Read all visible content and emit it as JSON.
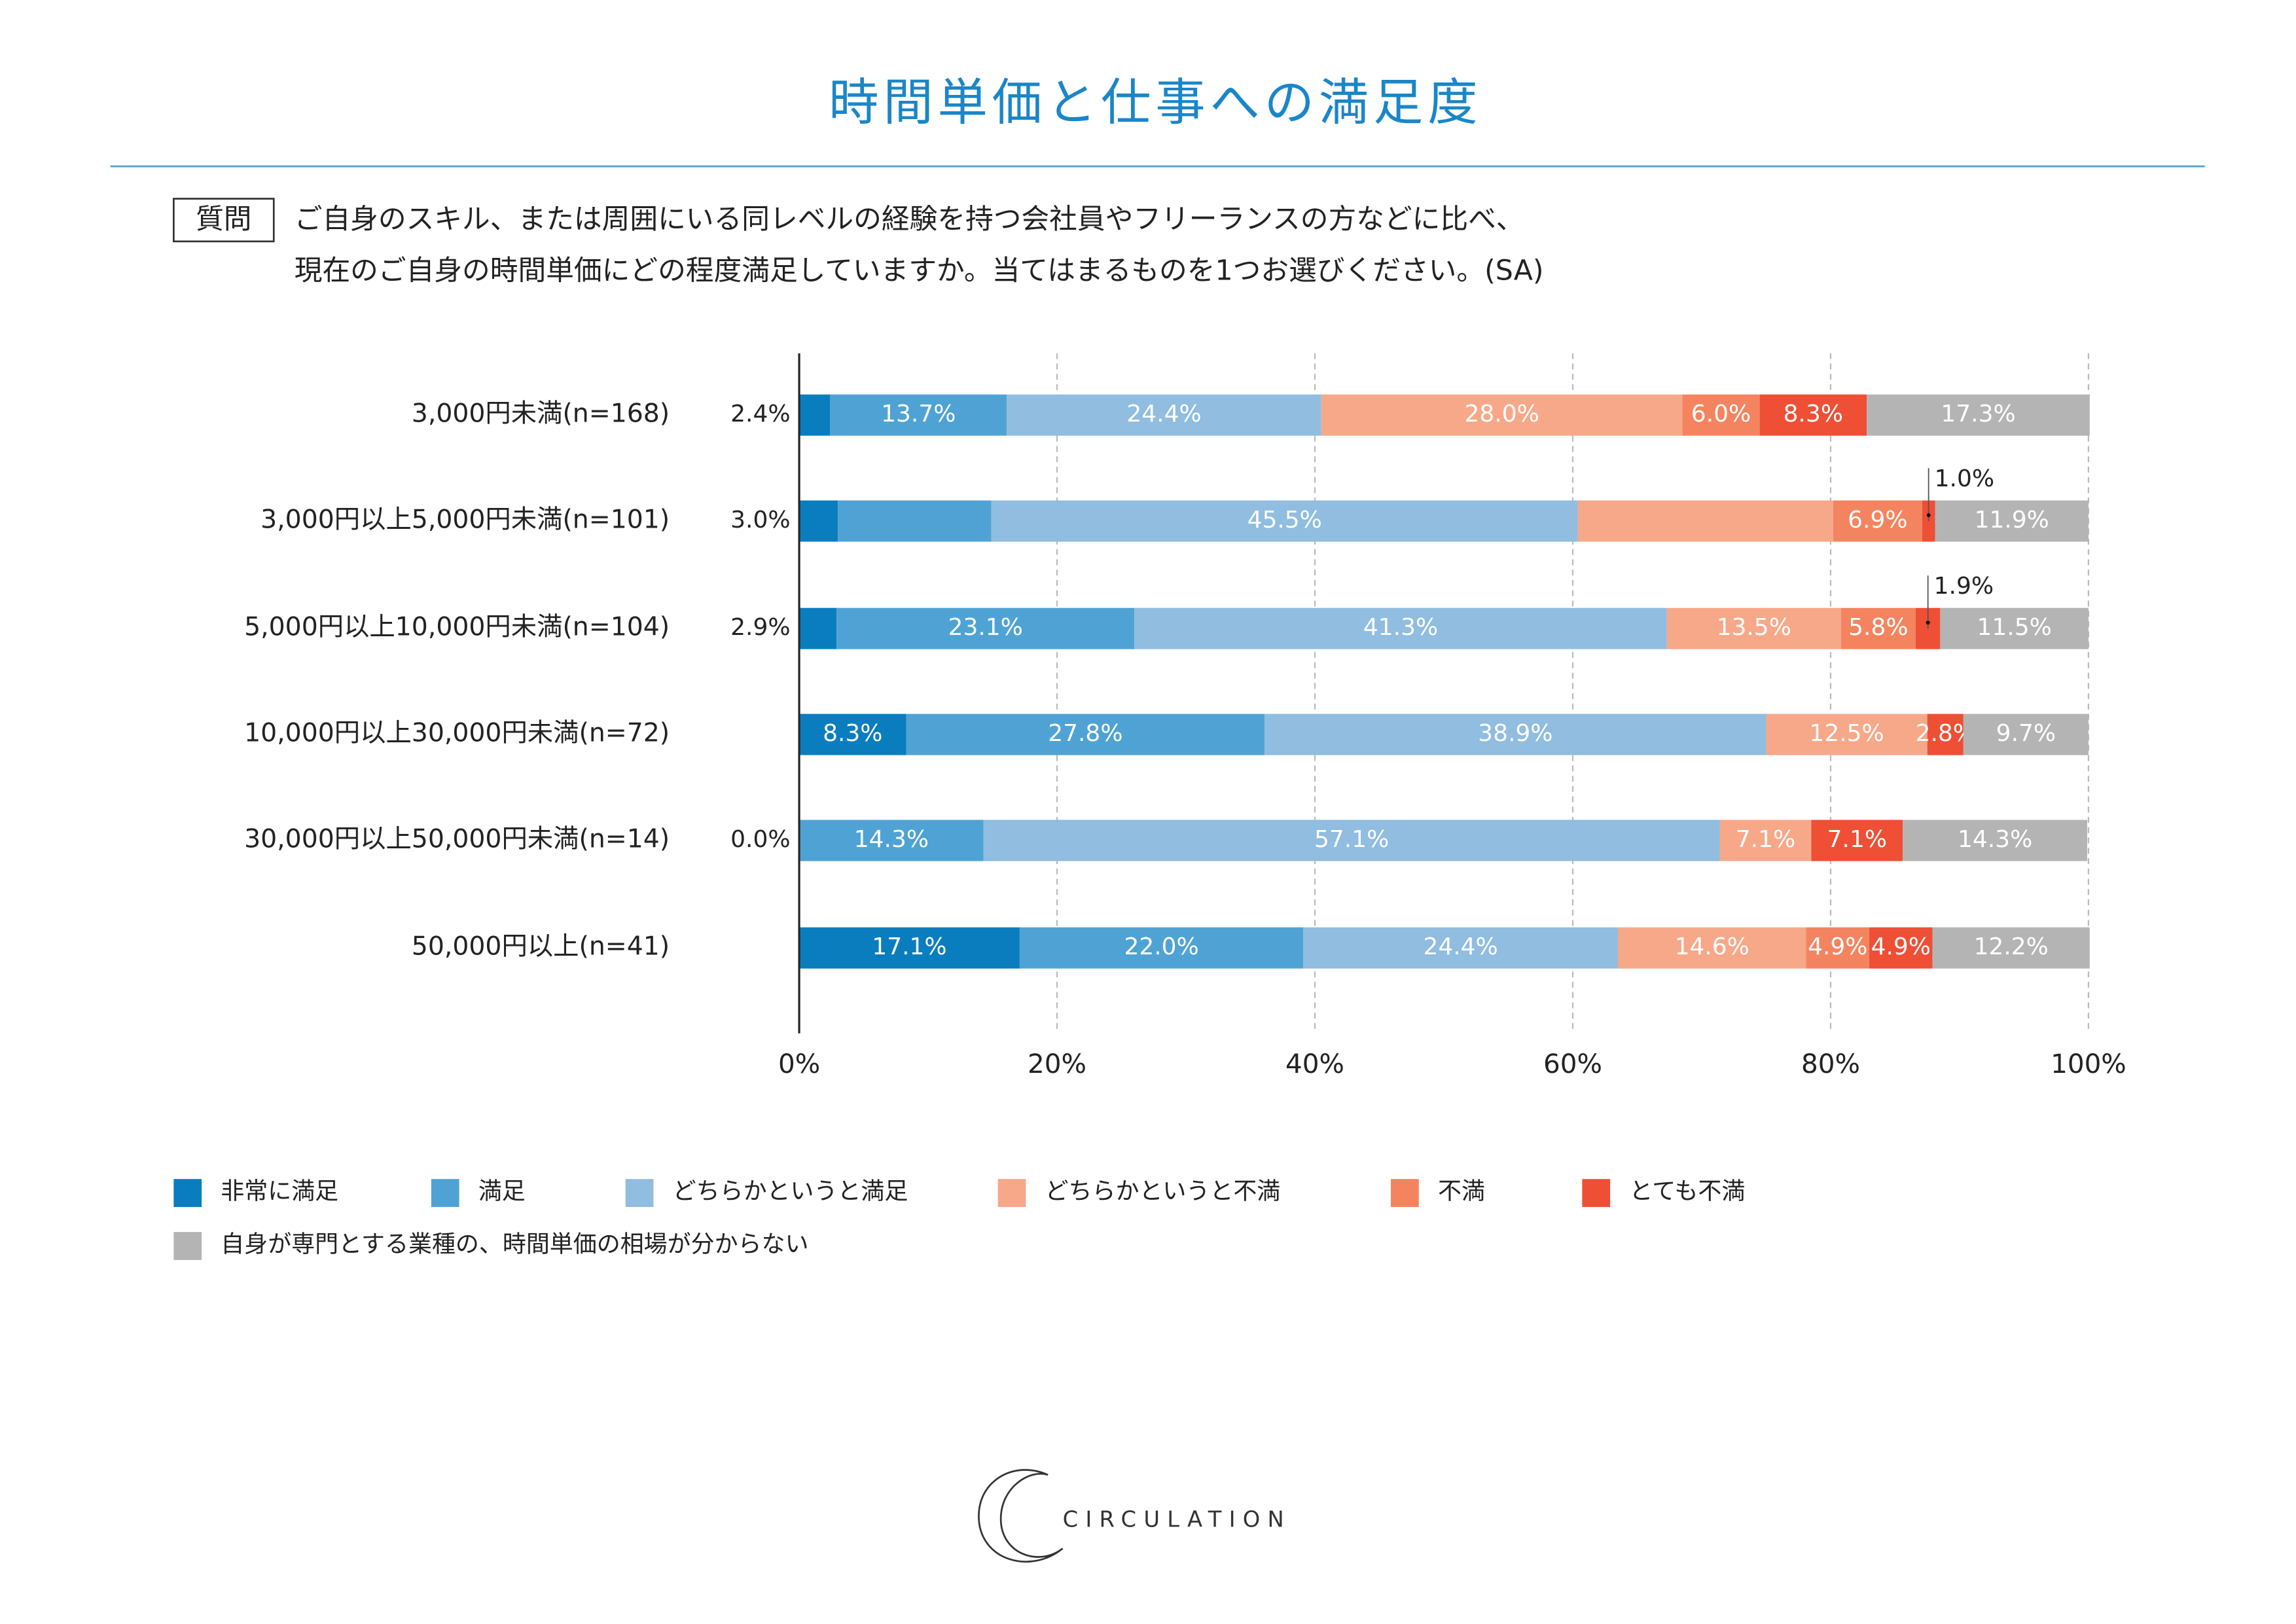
{
  "chart_data": {
    "type": "bar",
    "orientation": "horizontal",
    "stacked": true,
    "title": "時間単価と仕事への満足度",
    "categories": [
      "3,000円未満(n=168)",
      "3,000円以上5,000円未満(n=101)",
      "5,000円以上10,000円未満(n=104)",
      "10,000円以上30,000円未満(n=72)",
      "30,000円以上50,000円未満(n=14)",
      "50,000円以上(n=41)"
    ],
    "series": [
      {
        "name": "非常に満足",
        "color": "#0a7dbf",
        "values": [
          2.4,
          3.0,
          2.9,
          8.3,
          0.0,
          17.1
        ],
        "value_labels": [
          "2.4%",
          "3.0%",
          "2.9%",
          "8.3%",
          "0.0%",
          "17.1%"
        ]
      },
      {
        "name": "満足",
        "color": "#4fa3d4",
        "values": [
          13.7,
          11.9,
          23.1,
          27.8,
          14.3,
          22.0
        ],
        "value_labels": [
          "13.7%",
          null,
          "23.1%",
          "27.8%",
          "14.3%",
          "22.0%"
        ]
      },
      {
        "name": "どちらかというと満足",
        "color": "#90bde0",
        "values": [
          24.4,
          45.5,
          41.3,
          38.9,
          57.1,
          24.4
        ],
        "value_labels": [
          "24.4%",
          "45.5%",
          "41.3%",
          "38.9%",
          "57.1%",
          "24.4%"
        ]
      },
      {
        "name": "どちらかというと不満",
        "color": "#f7a889",
        "values": [
          28.0,
          19.8,
          13.5,
          12.5,
          7.1,
          14.6
        ],
        "value_labels": [
          "28.0%",
          null,
          "13.5%",
          "12.5%",
          "7.1%",
          "14.6%"
        ]
      },
      {
        "name": "不満",
        "color": "#f4845f",
        "values": [
          6.0,
          6.9,
          5.8,
          0,
          0,
          4.9
        ],
        "value_labels": [
          "6.0%",
          "6.9%",
          "5.8%",
          null,
          null,
          "4.9%"
        ]
      },
      {
        "name": "とても不満",
        "color": "#ee4f35",
        "values": [
          8.3,
          1.0,
          1.9,
          2.8,
          7.1,
          4.9
        ],
        "value_labels": [
          "8.3%",
          "1.0%",
          "1.9%",
          "2.8%",
          "7.1%",
          "4.9%"
        ]
      },
      {
        "name": "自身が専門とする業種の、時間単価の相場が分からない",
        "color": "#b4b4b4",
        "values": [
          17.3,
          11.9,
          11.5,
          9.7,
          14.3,
          12.2
        ],
        "value_labels": [
          "17.3%",
          "11.9%",
          "11.5%",
          "9.7%",
          "14.3%",
          "12.2%"
        ]
      }
    ],
    "xlim": [
      0,
      100
    ],
    "xticks": [
      {
        "value": 0,
        "label": "0%"
      },
      {
        "value": 20,
        "label": "20%"
      },
      {
        "value": 40,
        "label": "40%"
      },
      {
        "value": 60,
        "label": "60%"
      },
      {
        "value": 80,
        "label": "80%"
      },
      {
        "value": 100,
        "label": "100%"
      }
    ],
    "grid": true
  },
  "question": {
    "label": "質問",
    "lines": [
      "ご自身のスキル、または周囲にいる同レベルの経験を持つ会社員やフリーランスの方などに比べ、",
      "現在のご自身の時間単価にどの程度満足していますか。当てはまるものを1つお選びください。(SA)"
    ]
  },
  "logo": "CIRCULATION"
}
